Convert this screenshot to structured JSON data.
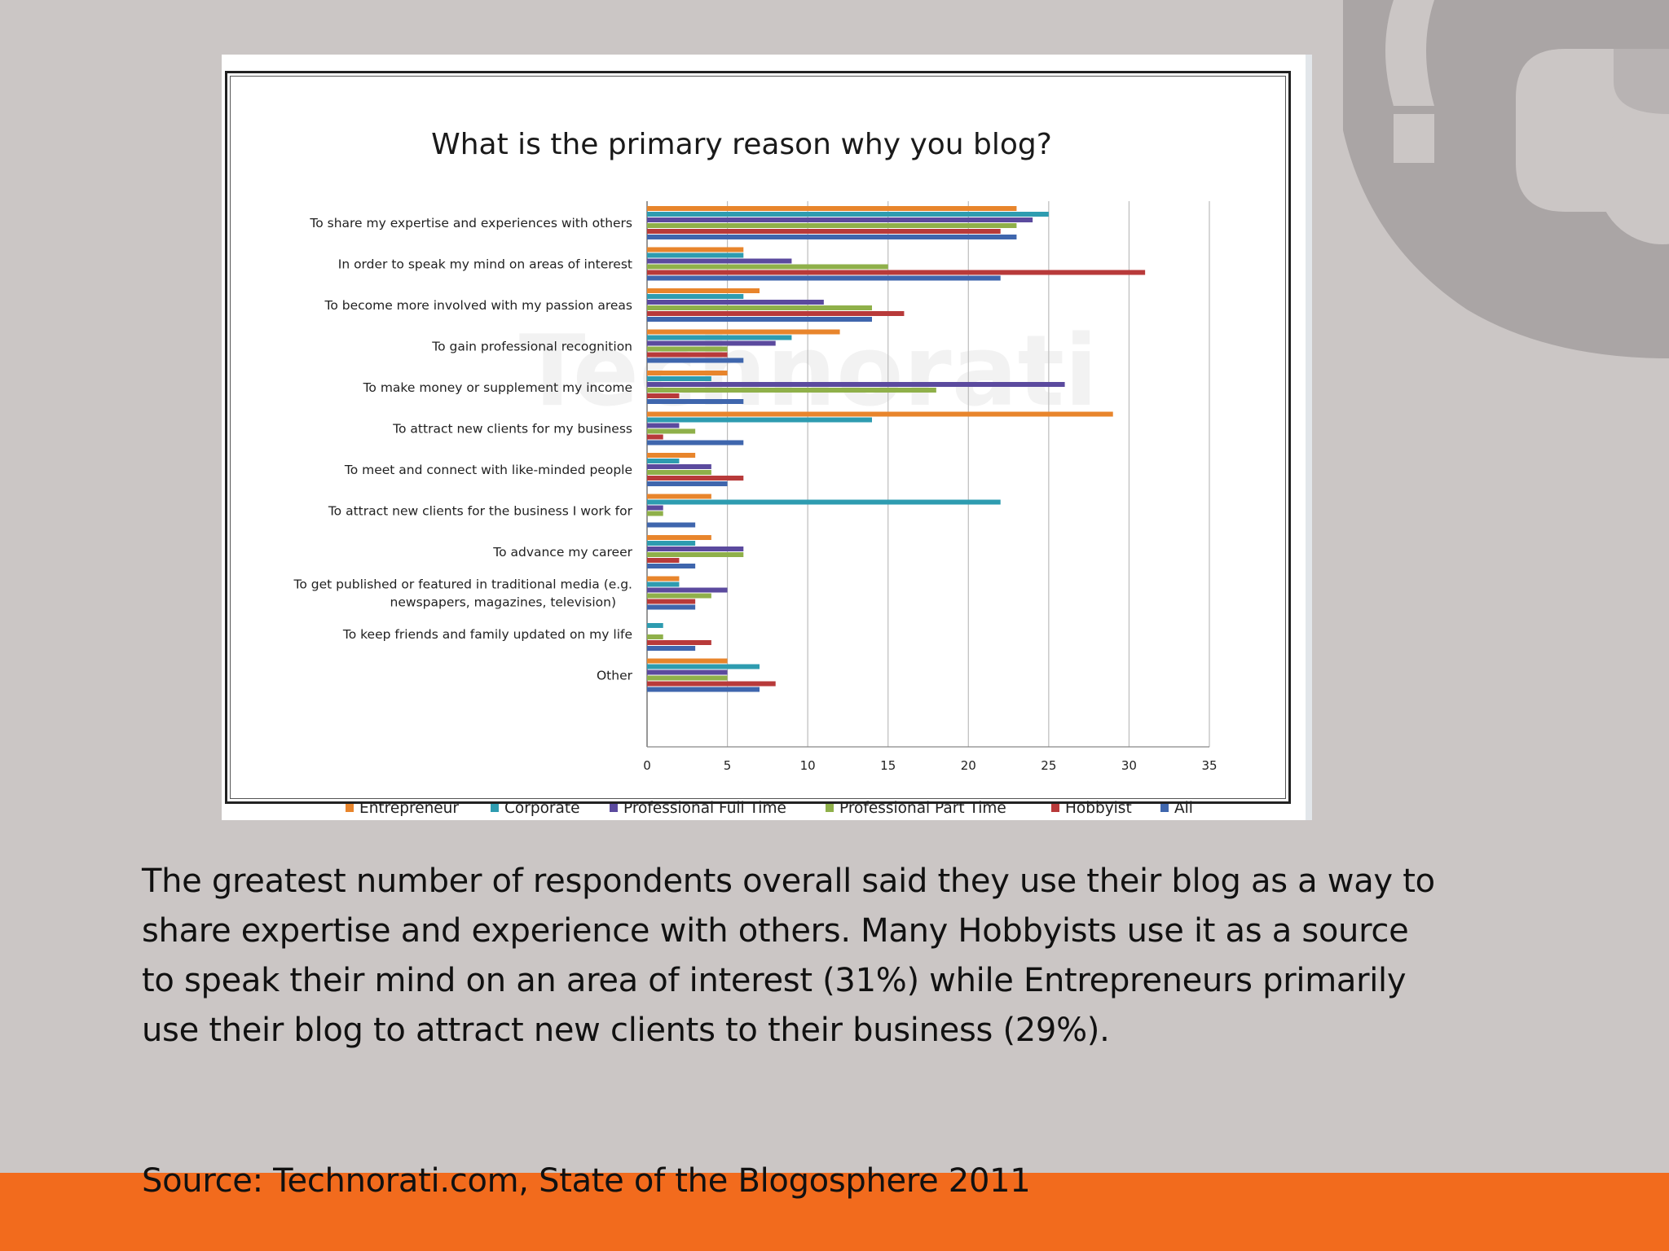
{
  "colors": {
    "background": "#cbc6c5",
    "footer_band": "#f26b1d",
    "deco_logo": "#aaa5a5"
  },
  "caption": {
    "text": "The greatest number of respondents overall said they use their blog as a way to share expertise and experience with others. Many Hobbyists use it as a source to speak their mind on an area of interest (31%) while Entrepreneurs primarily use their blog to attract new clients to their business (29%)."
  },
  "source": {
    "text": "Source: Technorati.com, State of the Blogosphere 2011"
  },
  "chart_data": {
    "type": "bar",
    "orientation": "horizontal",
    "title": "What is the primary reason why you blog?",
    "watermark": "Technorati",
    "xlim": [
      0,
      35
    ],
    "xticks": [
      0,
      5,
      10,
      15,
      20,
      25,
      30,
      35
    ],
    "grid": true,
    "legend_position": "bottom",
    "categories": [
      "To share my expertise and experiences with others",
      "In order to speak my mind on areas of interest",
      "To become more involved with my passion areas",
      "To gain professional recognition",
      "To make money or supplement my income",
      "To attract new clients for my business",
      "To meet and connect with like-minded people",
      "To attract new clients for the business I work for",
      "To advance my career",
      "To get published or featured in traditional media (e.g. newspapers, magazines, television)",
      "To keep friends and family updated on my life",
      "Other"
    ],
    "series": [
      {
        "name": "Entrepreneur",
        "color": "#e8852c",
        "values": [
          23,
          6,
          7,
          12,
          5,
          29,
          3,
          4,
          4,
          2,
          0,
          5
        ]
      },
      {
        "name": "Corporate",
        "color": "#2e9cb0",
        "values": [
          25,
          6,
          6,
          9,
          4,
          14,
          2,
          22,
          3,
          2,
          1,
          7
        ]
      },
      {
        "name": "Professional  Full Time",
        "color": "#5b4a9e",
        "values": [
          24,
          9,
          11,
          8,
          26,
          2,
          4,
          1,
          6,
          5,
          0,
          5
        ]
      },
      {
        "name": "Professional Part Time",
        "color": "#8fb04a",
        "values": [
          23,
          15,
          14,
          5,
          18,
          3,
          4,
          1,
          6,
          4,
          1,
          5
        ]
      },
      {
        "name": "Hobbyist",
        "color": "#b83a3a",
        "values": [
          22,
          31,
          16,
          5,
          2,
          1,
          6,
          0,
          2,
          3,
          4,
          8
        ]
      },
      {
        "name": "All",
        "color": "#3f66ad",
        "values": [
          23,
          22,
          14,
          6,
          6,
          6,
          5,
          3,
          3,
          3,
          3,
          7
        ]
      }
    ]
  }
}
